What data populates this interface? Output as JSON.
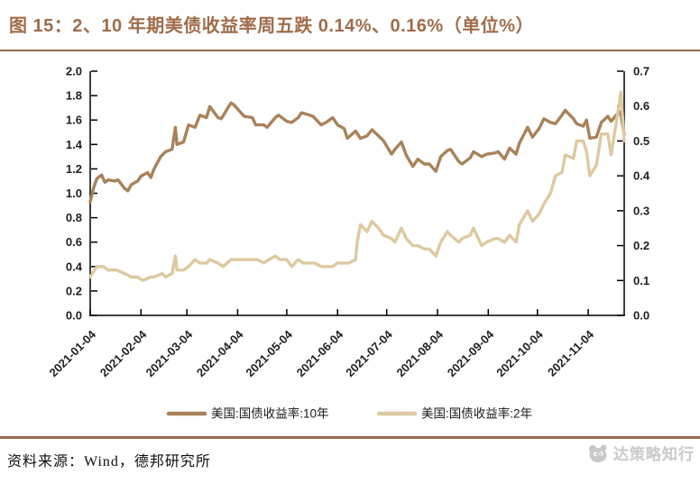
{
  "title": "图 15：2、10 年期美债收益率周五跌 0.14%、0.16%（单位%）",
  "footer": {
    "source": "资料来源：Wind，德邦研究所"
  },
  "watermark": {
    "text": "达策略知行",
    "icon": "panda-logo-icon"
  },
  "colors": {
    "accent_brown": "#96694e",
    "title_brown": "#a06c4a",
    "line_10y": "#a9825a",
    "line_2y": "#ddc9a1",
    "axis_black": "#000000",
    "watermark_gray": "#cbcbcb"
  },
  "chart_data": {
    "type": "line",
    "title": "图 15：2、10 年期美债收益率周五跌 0.14%、0.16%（单位%）",
    "unit": "%",
    "grid": false,
    "legend_position": "bottom",
    "x_range": [
      "2021-01-04",
      "2021-11-26"
    ],
    "x_tick_labels": [
      "2021-01-04",
      "2021-02-04",
      "2021-03-04",
      "2021-04-04",
      "2021-05-04",
      "2021-06-04",
      "2021-07-04",
      "2021-08-04",
      "2021-09-04",
      "2021-10-04",
      "2021-11-04"
    ],
    "left_axis": {
      "min": 0.0,
      "max": 2.0,
      "step": 0.2,
      "tick_labels": [
        "0.0",
        "0.2",
        "0.4",
        "0.6",
        "0.8",
        "1.0",
        "1.2",
        "1.4",
        "1.6",
        "1.8",
        "2.0"
      ]
    },
    "right_axis": {
      "min": 0.0,
      "max": 0.7,
      "step": 0.1,
      "tick_labels": [
        "0.0",
        "0.1",
        "0.2",
        "0.3",
        "0.4",
        "0.5",
        "0.6",
        "0.7"
      ]
    },
    "series": [
      {
        "name": "美国:国债收益率:10年",
        "axis": "left",
        "color": "#a9825a",
        "points": [
          [
            "2021-01-04",
            0.93
          ],
          [
            "2021-01-06",
            1.04
          ],
          [
            "2021-01-08",
            1.12
          ],
          [
            "2021-01-11",
            1.15
          ],
          [
            "2021-01-13",
            1.09
          ],
          [
            "2021-01-15",
            1.11
          ],
          [
            "2021-01-19",
            1.1
          ],
          [
            "2021-01-21",
            1.11
          ],
          [
            "2021-01-25",
            1.04
          ],
          [
            "2021-01-27",
            1.02
          ],
          [
            "2021-01-29",
            1.07
          ],
          [
            "2021-02-02",
            1.1
          ],
          [
            "2021-02-04",
            1.14
          ],
          [
            "2021-02-08",
            1.17
          ],
          [
            "2021-02-10",
            1.13
          ],
          [
            "2021-02-12",
            1.2
          ],
          [
            "2021-02-16",
            1.3
          ],
          [
            "2021-02-19",
            1.34
          ],
          [
            "2021-02-23",
            1.36
          ],
          [
            "2021-02-25",
            1.54
          ],
          [
            "2021-02-26",
            1.4
          ],
          [
            "2021-03-02",
            1.42
          ],
          [
            "2021-03-05",
            1.56
          ],
          [
            "2021-03-09",
            1.54
          ],
          [
            "2021-03-12",
            1.64
          ],
          [
            "2021-03-16",
            1.62
          ],
          [
            "2021-03-18",
            1.71
          ],
          [
            "2021-03-23",
            1.62
          ],
          [
            "2021-03-25",
            1.61
          ],
          [
            "2021-03-30",
            1.72
          ],
          [
            "2021-03-31",
            1.74
          ],
          [
            "2021-04-02",
            1.72
          ],
          [
            "2021-04-06",
            1.66
          ],
          [
            "2021-04-08",
            1.63
          ],
          [
            "2021-04-13",
            1.62
          ],
          [
            "2021-04-15",
            1.56
          ],
          [
            "2021-04-20",
            1.56
          ],
          [
            "2021-04-22",
            1.54
          ],
          [
            "2021-04-27",
            1.62
          ],
          [
            "2021-04-29",
            1.64
          ],
          [
            "2021-05-04",
            1.59
          ],
          [
            "2021-05-07",
            1.58
          ],
          [
            "2021-05-11",
            1.62
          ],
          [
            "2021-05-13",
            1.66
          ],
          [
            "2021-05-18",
            1.64
          ],
          [
            "2021-05-20",
            1.63
          ],
          [
            "2021-05-25",
            1.56
          ],
          [
            "2021-05-28",
            1.58
          ],
          [
            "2021-06-01",
            1.62
          ],
          [
            "2021-06-04",
            1.56
          ],
          [
            "2021-06-08",
            1.53
          ],
          [
            "2021-06-10",
            1.45
          ],
          [
            "2021-06-15",
            1.51
          ],
          [
            "2021-06-18",
            1.45
          ],
          [
            "2021-06-22",
            1.47
          ],
          [
            "2021-06-25",
            1.52
          ],
          [
            "2021-06-29",
            1.47
          ],
          [
            "2021-07-02",
            1.43
          ],
          [
            "2021-07-07",
            1.32
          ],
          [
            "2021-07-09",
            1.36
          ],
          [
            "2021-07-13",
            1.42
          ],
          [
            "2021-07-16",
            1.31
          ],
          [
            "2021-07-20",
            1.22
          ],
          [
            "2021-07-23",
            1.28
          ],
          [
            "2021-07-27",
            1.24
          ],
          [
            "2021-07-30",
            1.24
          ],
          [
            "2021-08-03",
            1.18
          ],
          [
            "2021-08-06",
            1.3
          ],
          [
            "2021-08-10",
            1.35
          ],
          [
            "2021-08-12",
            1.36
          ],
          [
            "2021-08-17",
            1.26
          ],
          [
            "2021-08-19",
            1.24
          ],
          [
            "2021-08-24",
            1.29
          ],
          [
            "2021-08-26",
            1.34
          ],
          [
            "2021-08-31",
            1.3
          ],
          [
            "2021-09-03",
            1.32
          ],
          [
            "2021-09-08",
            1.33
          ],
          [
            "2021-09-10",
            1.34
          ],
          [
            "2021-09-14",
            1.28
          ],
          [
            "2021-09-17",
            1.37
          ],
          [
            "2021-09-21",
            1.32
          ],
          [
            "2021-09-23",
            1.41
          ],
          [
            "2021-09-28",
            1.54
          ],
          [
            "2021-10-01",
            1.46
          ],
          [
            "2021-10-05",
            1.53
          ],
          [
            "2021-10-08",
            1.61
          ],
          [
            "2021-10-12",
            1.58
          ],
          [
            "2021-10-15",
            1.57
          ],
          [
            "2021-10-19",
            1.64
          ],
          [
            "2021-10-21",
            1.68
          ],
          [
            "2021-10-26",
            1.61
          ],
          [
            "2021-10-28",
            1.57
          ],
          [
            "2021-11-01",
            1.55
          ],
          [
            "2021-11-03",
            1.6
          ],
          [
            "2021-11-05",
            1.45
          ],
          [
            "2021-11-09",
            1.46
          ],
          [
            "2021-11-12",
            1.58
          ],
          [
            "2021-11-16",
            1.63
          ],
          [
            "2021-11-18",
            1.59
          ],
          [
            "2021-11-23",
            1.67
          ],
          [
            "2021-11-24",
            1.64
          ],
          [
            "2021-11-26",
            1.48
          ]
        ]
      },
      {
        "name": "美国:国债收益率:2年",
        "axis": "right",
        "color": "#ddc9a1",
        "points": [
          [
            "2021-01-04",
            0.11
          ],
          [
            "2021-01-08",
            0.14
          ],
          [
            "2021-01-12",
            0.14
          ],
          [
            "2021-01-15",
            0.13
          ],
          [
            "2021-01-20",
            0.13
          ],
          [
            "2021-01-25",
            0.12
          ],
          [
            "2021-01-29",
            0.11
          ],
          [
            "2021-02-02",
            0.11
          ],
          [
            "2021-02-05",
            0.1
          ],
          [
            "2021-02-10",
            0.11
          ],
          [
            "2021-02-12",
            0.11
          ],
          [
            "2021-02-17",
            0.12
          ],
          [
            "2021-02-19",
            0.11
          ],
          [
            "2021-02-23",
            0.12
          ],
          [
            "2021-02-25",
            0.17
          ],
          [
            "2021-02-26",
            0.13
          ],
          [
            "2021-03-02",
            0.13
          ],
          [
            "2021-03-05",
            0.14
          ],
          [
            "2021-03-09",
            0.16
          ],
          [
            "2021-03-12",
            0.15
          ],
          [
            "2021-03-16",
            0.15
          ],
          [
            "2021-03-18",
            0.16
          ],
          [
            "2021-03-23",
            0.15
          ],
          [
            "2021-03-26",
            0.14
          ],
          [
            "2021-03-31",
            0.16
          ],
          [
            "2021-04-06",
            0.16
          ],
          [
            "2021-04-09",
            0.16
          ],
          [
            "2021-04-13",
            0.16
          ],
          [
            "2021-04-16",
            0.16
          ],
          [
            "2021-04-20",
            0.15
          ],
          [
            "2021-04-23",
            0.16
          ],
          [
            "2021-04-27",
            0.17
          ],
          [
            "2021-04-30",
            0.16
          ],
          [
            "2021-05-04",
            0.16
          ],
          [
            "2021-05-07",
            0.14
          ],
          [
            "2021-05-11",
            0.16
          ],
          [
            "2021-05-14",
            0.15
          ],
          [
            "2021-05-18",
            0.15
          ],
          [
            "2021-05-21",
            0.15
          ],
          [
            "2021-05-25",
            0.14
          ],
          [
            "2021-05-28",
            0.14
          ],
          [
            "2021-06-01",
            0.14
          ],
          [
            "2021-06-04",
            0.15
          ],
          [
            "2021-06-08",
            0.15
          ],
          [
            "2021-06-11",
            0.15
          ],
          [
            "2021-06-15",
            0.16
          ],
          [
            "2021-06-16",
            0.21
          ],
          [
            "2021-06-18",
            0.26
          ],
          [
            "2021-06-22",
            0.24
          ],
          [
            "2021-06-25",
            0.27
          ],
          [
            "2021-06-29",
            0.25
          ],
          [
            "2021-07-02",
            0.23
          ],
          [
            "2021-07-07",
            0.22
          ],
          [
            "2021-07-09",
            0.21
          ],
          [
            "2021-07-13",
            0.25
          ],
          [
            "2021-07-16",
            0.22
          ],
          [
            "2021-07-20",
            0.2
          ],
          [
            "2021-07-23",
            0.2
          ],
          [
            "2021-07-27",
            0.19
          ],
          [
            "2021-07-30",
            0.19
          ],
          [
            "2021-08-03",
            0.17
          ],
          [
            "2021-08-06",
            0.21
          ],
          [
            "2021-08-10",
            0.24
          ],
          [
            "2021-08-12",
            0.23
          ],
          [
            "2021-08-17",
            0.21
          ],
          [
            "2021-08-19",
            0.22
          ],
          [
            "2021-08-24",
            0.23
          ],
          [
            "2021-08-26",
            0.25
          ],
          [
            "2021-08-31",
            0.2
          ],
          [
            "2021-09-03",
            0.21
          ],
          [
            "2021-09-08",
            0.22
          ],
          [
            "2021-09-10",
            0.22
          ],
          [
            "2021-09-14",
            0.21
          ],
          [
            "2021-09-17",
            0.23
          ],
          [
            "2021-09-21",
            0.21
          ],
          [
            "2021-09-23",
            0.26
          ],
          [
            "2021-09-28",
            0.3
          ],
          [
            "2021-10-01",
            0.27
          ],
          [
            "2021-10-05",
            0.29
          ],
          [
            "2021-10-08",
            0.32
          ],
          [
            "2021-10-12",
            0.35
          ],
          [
            "2021-10-15",
            0.4
          ],
          [
            "2021-10-19",
            0.41
          ],
          [
            "2021-10-21",
            0.46
          ],
          [
            "2021-10-26",
            0.45
          ],
          [
            "2021-10-28",
            0.5
          ],
          [
            "2021-11-01",
            0.5
          ],
          [
            "2021-11-03",
            0.47
          ],
          [
            "2021-11-05",
            0.4
          ],
          [
            "2021-11-09",
            0.43
          ],
          [
            "2021-11-12",
            0.52
          ],
          [
            "2021-11-16",
            0.52
          ],
          [
            "2021-11-18",
            0.46
          ],
          [
            "2021-11-23",
            0.61
          ],
          [
            "2021-11-24",
            0.64
          ],
          [
            "2021-11-26",
            0.5
          ]
        ]
      }
    ]
  }
}
